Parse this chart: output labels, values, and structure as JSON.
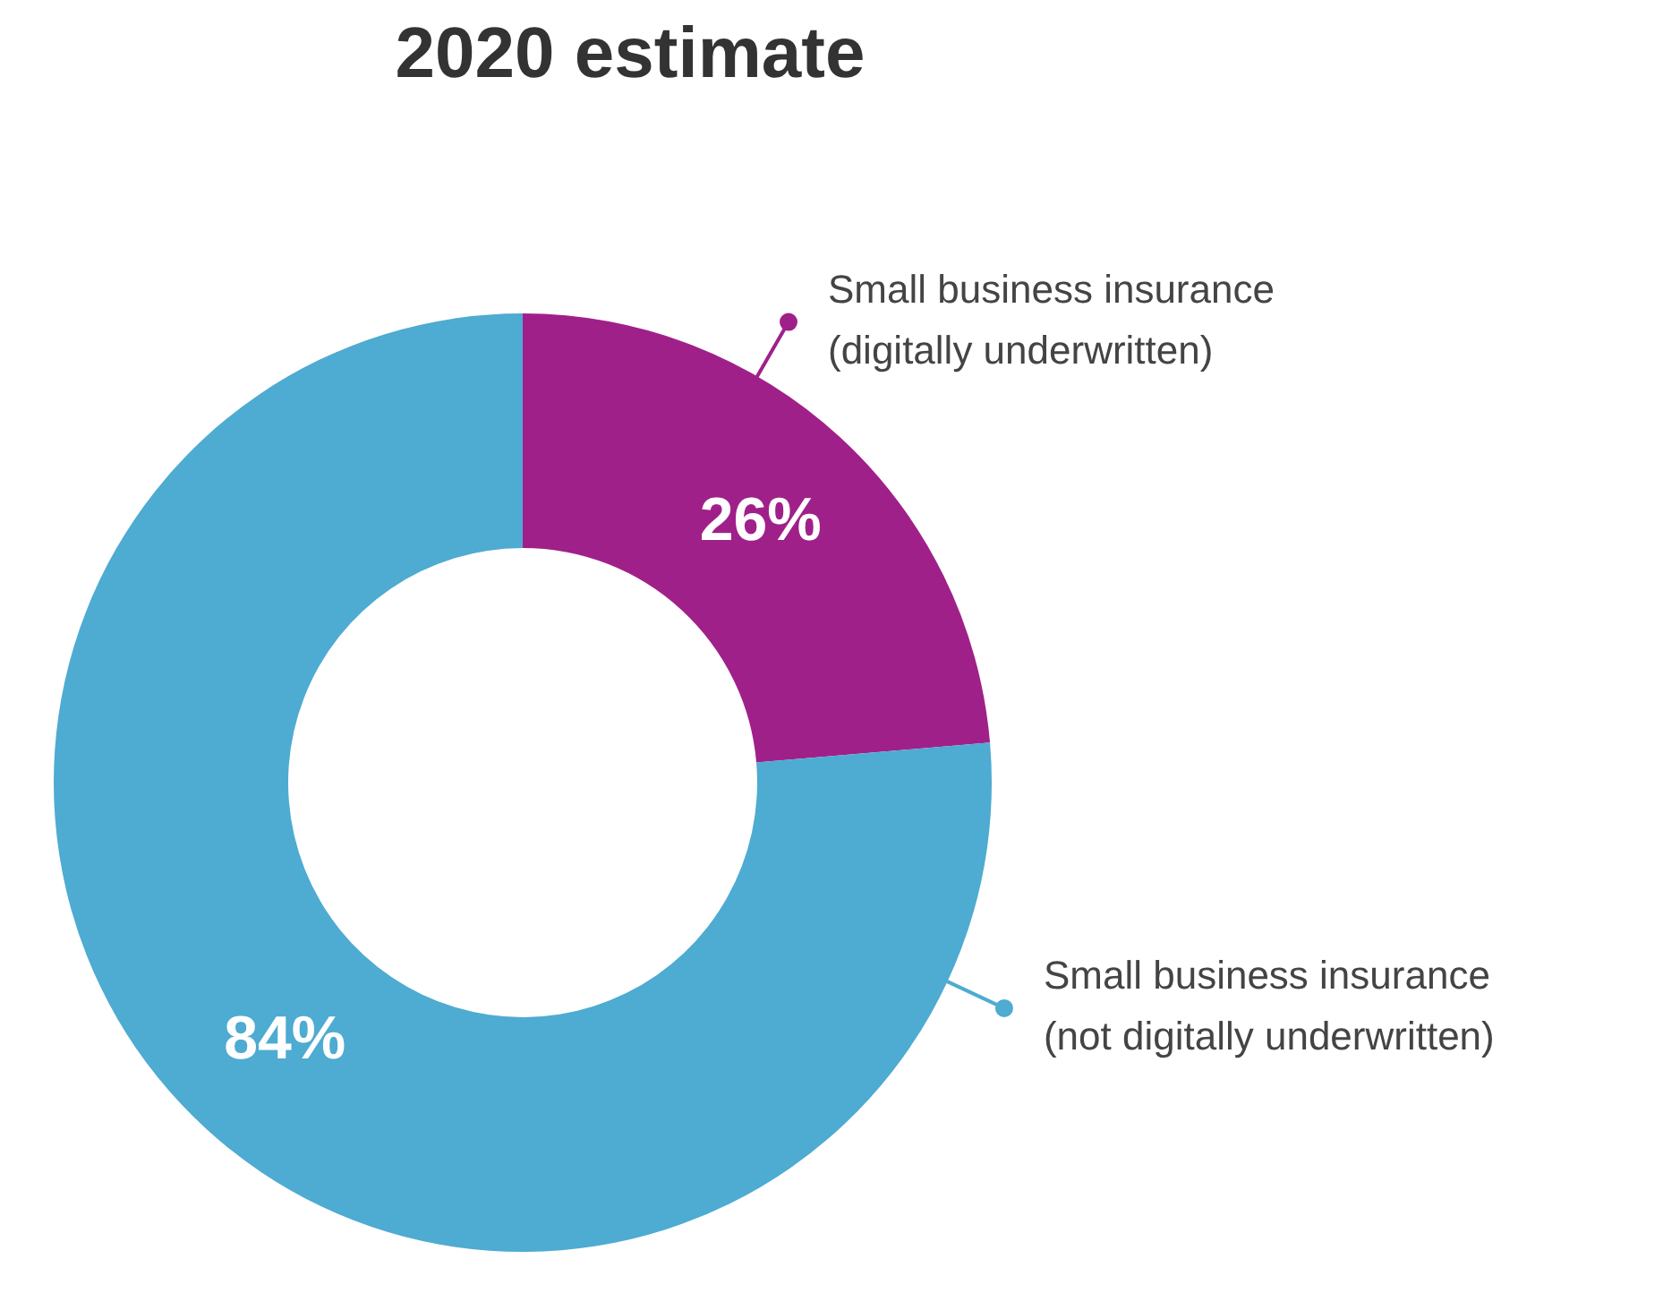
{
  "chart_data": {
    "type": "donut",
    "title": "2020 estimate",
    "categories": [
      "Small business insurance (digitally underwritten)",
      "Small business insurance (not digitally underwritten)"
    ],
    "values": [
      26,
      84
    ],
    "colors": [
      "#a0208a",
      "#4eabd1"
    ],
    "value_labels": [
      "26%",
      "84%"
    ],
    "legend": "right"
  }
}
